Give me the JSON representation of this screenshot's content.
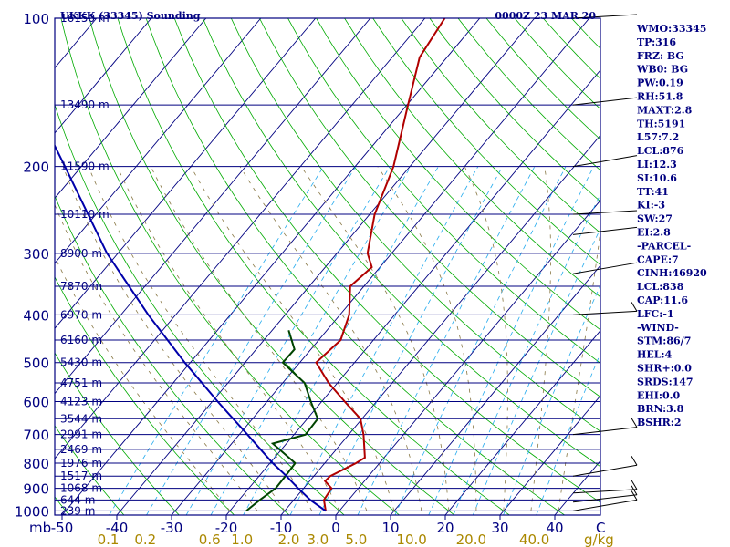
{
  "chart_data": {
    "type": "line",
    "title": "UKKK (33345) Sounding",
    "subtitle": "0000Z 23 MAR 20",
    "pressure_unit": "mb",
    "mixing_ratio_unit": "g/kg",
    "pressure_levels": [
      100,
      200,
      300,
      400,
      500,
      600,
      700,
      800,
      900,
      1000
    ],
    "height_labels": [
      {
        "p": 100,
        "label": "16150 m"
      },
      {
        "p": 150,
        "label": "13490 m"
      },
      {
        "p": 200,
        "label": "11590 m"
      },
      {
        "p": 250,
        "label": "10110 m"
      },
      {
        "p": 300,
        "label": "8900 m"
      },
      {
        "p": 350,
        "label": "7870 m"
      },
      {
        "p": 400,
        "label": "6970 m"
      },
      {
        "p": 450,
        "label": "6160 m"
      },
      {
        "p": 500,
        "label": "5430 m"
      },
      {
        "p": 550,
        "label": "4751 m"
      },
      {
        "p": 600,
        "label": "4123 m"
      },
      {
        "p": 650,
        "label": "3544 m"
      },
      {
        "p": 700,
        "label": "2991 m"
      },
      {
        "p": 750,
        "label": "2469 m"
      },
      {
        "p": 800,
        "label": "1976 m"
      },
      {
        "p": 850,
        "label": "1517 m"
      },
      {
        "p": 900,
        "label": "1068 m"
      },
      {
        "p": 950,
        "label": "644 m"
      },
      {
        "p": 1000,
        "label": "239 m"
      }
    ],
    "temp_ticks": [
      -50,
      -40,
      -30,
      -20,
      -10,
      0,
      10,
      20,
      30,
      40
    ],
    "temp_tick_labels": [
      "-50",
      "-40",
      "-30",
      "-20",
      "-10",
      "0",
      "10",
      "20",
      "30",
      "40"
    ],
    "temp_axis_end_label": "C",
    "mixing_ratio_labels": [
      {
        "v": 0.1,
        "label": "0.1"
      },
      {
        "v": 0.2,
        "label": "0.2"
      },
      {
        "v": 0.6,
        "label": "0.6"
      },
      {
        "v": 1.0,
        "label": "1.0"
      },
      {
        "v": 2.0,
        "label": "2.0"
      },
      {
        "v": 3.0,
        "label": "3.0"
      },
      {
        "v": 5.0,
        "label": "5.0"
      },
      {
        "v": 10.0,
        "label": "10.0"
      },
      {
        "v": 20.0,
        "label": "20.0"
      },
      {
        "v": 40.0,
        "label": "40.0"
      }
    ],
    "series": [
      {
        "name": "Temperature",
        "color": "#b00000",
        "points": [
          {
            "p": 1000,
            "t": -2.5
          },
          {
            "p": 950,
            "t": -4.5
          },
          {
            "p": 900,
            "t": -4.9
          },
          {
            "p": 870,
            "t": -7.2
          },
          {
            "p": 850,
            "t": -7.0
          },
          {
            "p": 800,
            "t": -4.3
          },
          {
            "p": 780,
            "t": -3.5
          },
          {
            "p": 700,
            "t": -7.3
          },
          {
            "p": 650,
            "t": -10.3
          },
          {
            "p": 600,
            "t": -15.8
          },
          {
            "p": 550,
            "t": -21.6
          },
          {
            "p": 500,
            "t": -27.0
          },
          {
            "p": 450,
            "t": -26.0
          },
          {
            "p": 400,
            "t": -28.3
          },
          {
            "p": 350,
            "t": -32.5
          },
          {
            "p": 320,
            "t": -31.5
          },
          {
            "p": 300,
            "t": -34.4
          },
          {
            "p": 250,
            "t": -39.1
          },
          {
            "p": 200,
            "t": -43.0
          },
          {
            "p": 150,
            "t": -49.8
          },
          {
            "p": 120,
            "t": -55.0
          },
          {
            "p": 100,
            "t": -56.4
          }
        ]
      },
      {
        "name": "Dew point",
        "color": "#004400",
        "points": [
          {
            "p": 1000,
            "t": -17.0
          },
          {
            "p": 950,
            "t": -16.2
          },
          {
            "p": 900,
            "t": -15.1
          },
          {
            "p": 850,
            "t": -15.2
          },
          {
            "p": 800,
            "t": -15.4
          },
          {
            "p": 730,
            "t": -22.5
          },
          {
            "p": 700,
            "t": -17.9
          },
          {
            "p": 650,
            "t": -18.1
          },
          {
            "p": 600,
            "t": -22.0
          },
          {
            "p": 550,
            "t": -26.0
          },
          {
            "p": 500,
            "t": -33.1
          },
          {
            "p": 470,
            "t": -33.0
          },
          {
            "p": 430,
            "t": -37.0
          }
        ]
      },
      {
        "name": "Parcel",
        "color": "#0000aa",
        "points": [
          {
            "p": 1000,
            "t": -2.5
          },
          {
            "p": 950,
            "t": -7.0
          },
          {
            "p": 900,
            "t": -11.0
          },
          {
            "p": 850,
            "t": -15.0
          },
          {
            "p": 800,
            "t": -19.5
          },
          {
            "p": 700,
            "t": -28.5
          },
          {
            "p": 600,
            "t": -39.0
          },
          {
            "p": 500,
            "t": -51.0
          },
          {
            "p": 400,
            "t": -65.0
          },
          {
            "p": 300,
            "t": -82.0
          },
          {
            "p": 200,
            "t": -103.0
          },
          {
            "p": 150,
            "t": -118.0
          },
          {
            "p": 100,
            "t": -138.0
          }
        ]
      }
    ],
    "wind_levels": [
      1000,
      960,
      920,
      850,
      700,
      400,
      330,
      275,
      250,
      200,
      150,
      100
    ],
    "grid": true,
    "legend": "none"
  },
  "indices": [
    "WMO:33345",
    "TP:316",
    "FRZ: BG",
    "WB0: BG",
    "PW:0.19",
    "RH:51.8",
    "MAXT:2.8",
    "TH:5191",
    "L57:7.2",
    "LCL:876",
    "LI:12.3",
    "SI:10.6",
    "TT:41",
    "KI:-3",
    "SW:27",
    "EI:2.8",
    "-PARCEL-",
    "CAPE:7",
    "CINH:46920",
    "LCL:838",
    "CAP:11.6",
    "LFC:-1",
    "-WIND-",
    "STM:86/7",
    "HEL:4",
    "SHR+:0.0",
    "SRDS:147",
    "EHI:0.0",
    "BRN:3.8",
    "BSHR:2"
  ],
  "colors": {
    "frame": "#000080",
    "isobar": "#000080",
    "isotherm": "#000080",
    "dry_adiabat": "#00aa00",
    "mixing_ratio": "#22aaee",
    "moist_adiabat": "#887744",
    "label_blue": "#000080",
    "label_gold": "#aa8800"
  }
}
